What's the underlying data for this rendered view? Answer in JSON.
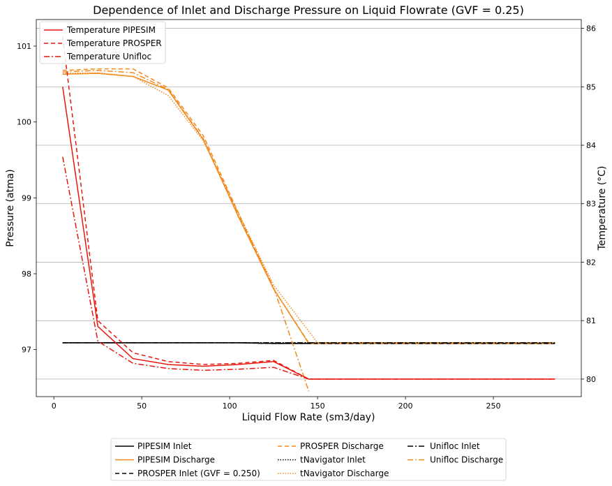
{
  "chart_data": {
    "type": "line",
    "title": "Dependence of Inlet and Discharge Pressure on Liquid Flowrate (GVF = 0.25)",
    "xlabel": "Liquid Flow Rate (sm3/day)",
    "ylabel": "Pressure (atma)",
    "y2label": "Temperature (°C)",
    "xlim": [
      -10,
      300
    ],
    "ylim": [
      96.38,
      101.35
    ],
    "y2lim": [
      79.7,
      86.15
    ],
    "xticks": [
      0,
      50,
      100,
      150,
      200,
      250
    ],
    "yticks": [
      97,
      98,
      99,
      100,
      101
    ],
    "y2ticks": [
      80,
      81,
      82,
      83,
      84,
      85,
      86
    ],
    "grid": "horizontal gridlines from right axis",
    "pressure_series": [
      {
        "name": "PIPESIM Inlet",
        "color": "#000000",
        "dash": "solid",
        "x": [
          5,
          25,
          45,
          65,
          85,
          105,
          125,
          145,
          165,
          185,
          205,
          225,
          245,
          265,
          285
        ],
        "y": [
          97.09,
          97.09,
          97.09,
          97.09,
          97.09,
          97.09,
          97.08,
          97.08,
          97.08,
          97.08,
          97.08,
          97.08,
          97.08,
          97.08,
          97.08
        ]
      },
      {
        "name": "PIPESIM Discharge",
        "color": "#f28a1e",
        "dash": "solid",
        "x": [
          5,
          25,
          45,
          65,
          85,
          105,
          125,
          145,
          165,
          185,
          205,
          225,
          245,
          265,
          285
        ],
        "y": [
          100.63,
          100.64,
          100.6,
          100.42,
          99.77,
          98.75,
          97.8,
          97.08,
          97.08,
          97.08,
          97.08,
          97.08,
          97.08,
          97.08,
          97.08
        ]
      },
      {
        "name": "PROSPER Inlet (GVF = 0.250)",
        "color": "#000000",
        "dash": "6,4",
        "x": [
          5,
          25,
          45,
          65,
          85,
          105,
          125,
          145,
          165,
          185,
          205,
          225,
          245,
          265,
          285
        ],
        "y": [
          97.09,
          97.09,
          97.09,
          97.09,
          97.09,
          97.09,
          97.08,
          97.08,
          97.08,
          97.08,
          97.08,
          97.08,
          97.08,
          97.08,
          97.08
        ]
      },
      {
        "name": "PROSPER Discharge",
        "color": "#f28a1e",
        "dash": "6,4",
        "x": [
          5,
          25,
          45,
          65,
          85,
          105,
          125,
          145,
          165,
          185,
          205,
          225,
          245,
          265,
          285
        ],
        "y": [
          100.68,
          100.7,
          100.7,
          100.45,
          99.82,
          98.8,
          97.8,
          97.09,
          97.09,
          97.09,
          97.09,
          97.09,
          97.09,
          97.09,
          97.09
        ]
      },
      {
        "name": "tNavigator Inlet",
        "color": "#000000",
        "dash": "1.5,2",
        "x": [
          5,
          25,
          45,
          65,
          85,
          105,
          125,
          145,
          165,
          185,
          205,
          225,
          245,
          265,
          285
        ],
        "y": [
          97.09,
          97.09,
          97.09,
          97.09,
          97.09,
          97.09,
          97.09,
          97.09,
          97.09,
          97.09,
          97.09,
          97.09,
          97.09,
          97.09,
          97.09
        ]
      },
      {
        "name": "tNavigator Discharge",
        "color": "#f28a1e",
        "dash": "1.5,2",
        "x": [
          5,
          25,
          45,
          65,
          85,
          105,
          125,
          150,
          165,
          185,
          205,
          225,
          245,
          265,
          285
        ],
        "y": [
          100.64,
          100.65,
          100.6,
          100.35,
          99.75,
          98.8,
          97.85,
          97.09,
          97.09,
          97.09,
          97.09,
          97.09,
          97.09,
          97.09,
          97.09
        ]
      },
      {
        "name": "Unifloc Inlet",
        "color": "#000000",
        "dash": "8,3,2,3",
        "x": [
          5,
          25,
          45,
          65,
          85,
          105,
          125,
          145,
          165,
          185,
          205,
          225,
          245,
          265,
          285
        ],
        "y": [
          97.09,
          97.09,
          97.09,
          97.09,
          97.09,
          97.09,
          97.09,
          97.09,
          97.09,
          97.09,
          97.09,
          97.09,
          97.09,
          97.09,
          97.09
        ]
      },
      {
        "name": "Unifloc Discharge",
        "color": "#f28a1e",
        "dash": "8,3,2,3",
        "x": [
          5,
          25,
          45,
          65,
          85,
          105,
          125,
          145
        ],
        "y": [
          100.66,
          100.68,
          100.65,
          100.43,
          99.78,
          98.78,
          97.82,
          96.45
        ]
      }
    ],
    "temperature_series": [
      {
        "name": "Temperature PIPESIM",
        "color": "#e8160c",
        "dash": "solid",
        "x": [
          5,
          25,
          45,
          65,
          85,
          105,
          125,
          145,
          165,
          185,
          205,
          225,
          245,
          265,
          285
        ],
        "y": [
          85.0,
          80.9,
          80.35,
          80.25,
          80.22,
          80.25,
          80.3,
          80.0,
          80.0,
          80.0,
          80.0,
          80.0,
          80.0,
          80.0,
          80.0
        ]
      },
      {
        "name": "Temperature PROSPER",
        "color": "#e8160c",
        "dash": "6,4",
        "x": [
          5,
          25,
          45,
          65,
          85,
          105,
          125,
          145,
          165,
          185,
          205,
          225,
          245,
          265,
          285
        ],
        "y": [
          85.85,
          81.0,
          80.45,
          80.3,
          80.25,
          80.27,
          80.32,
          80.0,
          80.0,
          80.0,
          80.0,
          80.0,
          80.0,
          80.0,
          80.0
        ]
      },
      {
        "name": "Temperature Unifloc",
        "color": "#e8160c",
        "dash": "8,3,2,3",
        "x": [
          5,
          25,
          45,
          65,
          85,
          105,
          125,
          145,
          165,
          185,
          205,
          225,
          245,
          265,
          285
        ],
        "y": [
          83.8,
          80.65,
          80.27,
          80.18,
          80.15,
          80.17,
          80.2,
          80.0,
          80.0,
          80.0,
          80.0,
          80.0,
          80.0,
          80.0,
          80.0
        ]
      }
    ]
  }
}
